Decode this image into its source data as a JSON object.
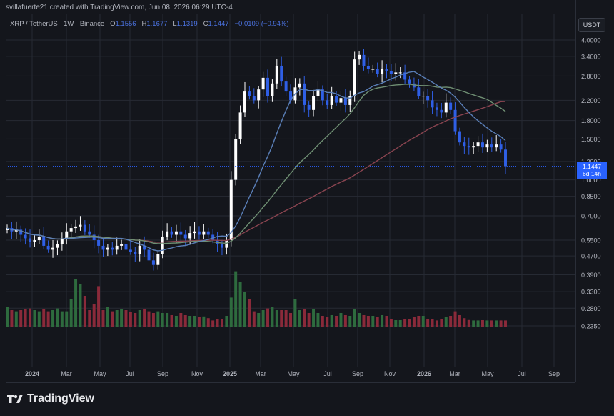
{
  "header": {
    "created_by": "svillafuerte21 created with TradingView.com, Jun 08, 2026 06:29 UTC-4"
  },
  "symbol": {
    "name": "XRP / TetherUS · 1W · Binance",
    "open_label": "O",
    "open_value": "1.1556",
    "high_label": "H",
    "high_value": "1.1677",
    "low_label": "L",
    "low_value": "1.1319",
    "close_label": "C",
    "close_value": "1.1447",
    "change": "−0.0109 (−0.94%)"
  },
  "currency_button": "USDT",
  "price_tag": {
    "price": "1.1447",
    "countdown": "6d 14h"
  },
  "logo_text": "TradingView",
  "colors": {
    "up": "#ffffff",
    "down": "#2f5fe6",
    "vol_up": "#2e6b3e",
    "vol_down": "#8a2a3a",
    "ma_blue": "#5a7fb8",
    "ma_green": "#6f8f73",
    "ma_red": "#8a4450",
    "grid": "#262a33"
  },
  "chart_data": {
    "type": "candlestick",
    "scale": "log",
    "y_ticks": [
      "4.0000",
      "3.4000",
      "2.8000",
      "2.2000",
      "1.8000",
      "1.5000",
      "1.2000",
      "1.0000",
      "0.8500",
      "0.7000",
      "0.5500",
      "0.4700",
      "0.3900",
      "0.3300",
      "0.2800",
      "0.2350"
    ],
    "x_ticks": [
      "2024",
      "Mar",
      "May",
      "Jul",
      "Sep",
      "Nov",
      "2025",
      "Mar",
      "May",
      "Jul",
      "Sep",
      "Nov",
      "2026",
      "Mar",
      "May",
      "Jul",
      "Sep"
    ],
    "ylim": [
      0.235,
      4.0
    ],
    "last_price": 1.1447,
    "grid": true,
    "ohlc_close": [
      0.62,
      0.6,
      0.61,
      0.58,
      0.56,
      0.54,
      0.55,
      0.57,
      0.52,
      0.5,
      0.51,
      0.53,
      0.56,
      0.6,
      0.62,
      0.63,
      0.64,
      0.6,
      0.58,
      0.55,
      0.52,
      0.5,
      0.51,
      0.5,
      0.52,
      0.53,
      0.5,
      0.49,
      0.48,
      0.52,
      0.5,
      0.45,
      0.43,
      0.48,
      0.57,
      0.6,
      0.58,
      0.6,
      0.58,
      0.56,
      0.59,
      0.6,
      0.58,
      0.6,
      0.58,
      0.55,
      0.53,
      0.51,
      0.55,
      1.0,
      1.5,
      1.95,
      2.4,
      2.3,
      2.2,
      2.45,
      2.75,
      2.3,
      2.6,
      3.1,
      2.65,
      2.4,
      2.2,
      2.5,
      2.6,
      2.1,
      2.0,
      2.3,
      2.45,
      2.2,
      2.1,
      2.3,
      2.15,
      2.25,
      2.1,
      2.3,
      3.3,
      3.45,
      3.1,
      3.0,
      3.0,
      2.85,
      3.0,
      2.95,
      2.85,
      2.9,
      2.9,
      2.7,
      2.6,
      2.5,
      2.3,
      2.3,
      2.2,
      2.05,
      2.0,
      1.95,
      2.15,
      2.0,
      1.62,
      1.45,
      1.4,
      1.38,
      1.4,
      1.45,
      1.38,
      1.42,
      1.38,
      1.42,
      1.35,
      1.1447
    ],
    "volume_rel": [
      0.35,
      0.3,
      0.28,
      0.3,
      0.32,
      0.33,
      0.3,
      0.28,
      0.32,
      0.28,
      0.3,
      0.33,
      0.28,
      0.28,
      0.5,
      0.85,
      0.75,
      0.55,
      0.3,
      0.4,
      0.72,
      0.3,
      0.35,
      0.28,
      0.3,
      0.32,
      0.3,
      0.27,
      0.25,
      0.3,
      0.32,
      0.28,
      0.25,
      0.28,
      0.25,
      0.25,
      0.22,
      0.2,
      0.25,
      0.22,
      0.2,
      0.2,
      0.18,
      0.19,
      0.16,
      0.12,
      0.15,
      0.15,
      0.2,
      0.52,
      0.98,
      0.8,
      0.62,
      0.5,
      0.28,
      0.25,
      0.3,
      0.33,
      0.35,
      0.3,
      0.3,
      0.3,
      0.25,
      0.5,
      0.3,
      0.32,
      0.25,
      0.32,
      0.25,
      0.2,
      0.18,
      0.22,
      0.2,
      0.25,
      0.22,
      0.2,
      0.32,
      0.25,
      0.22,
      0.2,
      0.2,
      0.18,
      0.22,
      0.2,
      0.15,
      0.13,
      0.13,
      0.15,
      0.15,
      0.18,
      0.2,
      0.2,
      0.15,
      0.15,
      0.12,
      0.15,
      0.18,
      0.2,
      0.28,
      0.22,
      0.16,
      0.14,
      0.12,
      0.12,
      0.13,
      0.12,
      0.12,
      0.12,
      0.12,
      0.12
    ]
  }
}
